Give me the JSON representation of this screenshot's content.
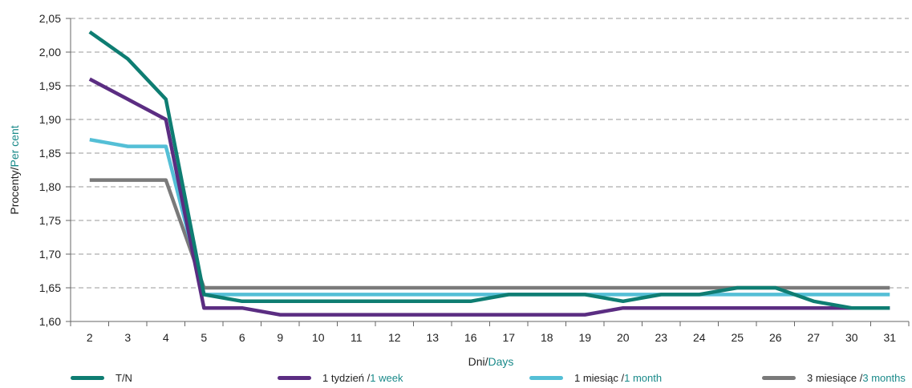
{
  "chart_data": {
    "type": "line",
    "categories": [
      "2",
      "3",
      "4",
      "5",
      "6",
      "9",
      "10",
      "11",
      "12",
      "13",
      "16",
      "17",
      "18",
      "19",
      "20",
      "23",
      "24",
      "25",
      "26",
      "27",
      "30",
      "31"
    ],
    "ylim": [
      1.6,
      2.05
    ],
    "yticks": [
      "1,60",
      "1,65",
      "1,70",
      "1,75",
      "1,80",
      "1,85",
      "1,90",
      "1,95",
      "2,00",
      "2,05"
    ],
    "ylabel": {
      "main": "Procenty/",
      "alt": "Per cent"
    },
    "xlabel": {
      "main": "Dni/",
      "alt": "Days"
    },
    "grid": "horizontal-dashed",
    "legend_position": "bottom",
    "series": [
      {
        "name_main": "T/N",
        "name_alt": "",
        "color": "#0e7d72",
        "values": [
          2.03,
          1.99,
          1.93,
          1.64,
          1.63,
          1.63,
          1.63,
          1.63,
          1.63,
          1.63,
          1.63,
          1.64,
          1.64,
          1.64,
          1.63,
          1.64,
          1.64,
          1.65,
          1.65,
          1.63,
          1.62,
          1.62
        ]
      },
      {
        "name_main": "1 tydzień / ",
        "name_alt": "1 week",
        "color": "#5b2d82",
        "values": [
          1.96,
          1.93,
          1.9,
          1.62,
          1.62,
          1.61,
          1.61,
          1.61,
          1.61,
          1.61,
          1.61,
          1.61,
          1.61,
          1.61,
          1.62,
          1.62,
          1.62,
          1.62,
          1.62,
          1.62,
          1.62,
          1.62
        ]
      },
      {
        "name_main": "1 miesiąc / ",
        "name_alt": "1 month",
        "color": "#54bfd6",
        "values": [
          1.87,
          1.86,
          1.86,
          1.64,
          1.64,
          1.64,
          1.64,
          1.64,
          1.64,
          1.64,
          1.64,
          1.64,
          1.64,
          1.64,
          1.64,
          1.64,
          1.64,
          1.64,
          1.64,
          1.64,
          1.64,
          1.64
        ]
      },
      {
        "name_main": "3 miesiące / ",
        "name_alt": "3 months",
        "color": "#7a7a7a",
        "values": [
          1.81,
          1.81,
          1.81,
          1.65,
          1.65,
          1.65,
          1.65,
          1.65,
          1.65,
          1.65,
          1.65,
          1.65,
          1.65,
          1.65,
          1.65,
          1.65,
          1.65,
          1.65,
          1.65,
          1.65,
          1.65,
          1.65
        ]
      }
    ]
  }
}
